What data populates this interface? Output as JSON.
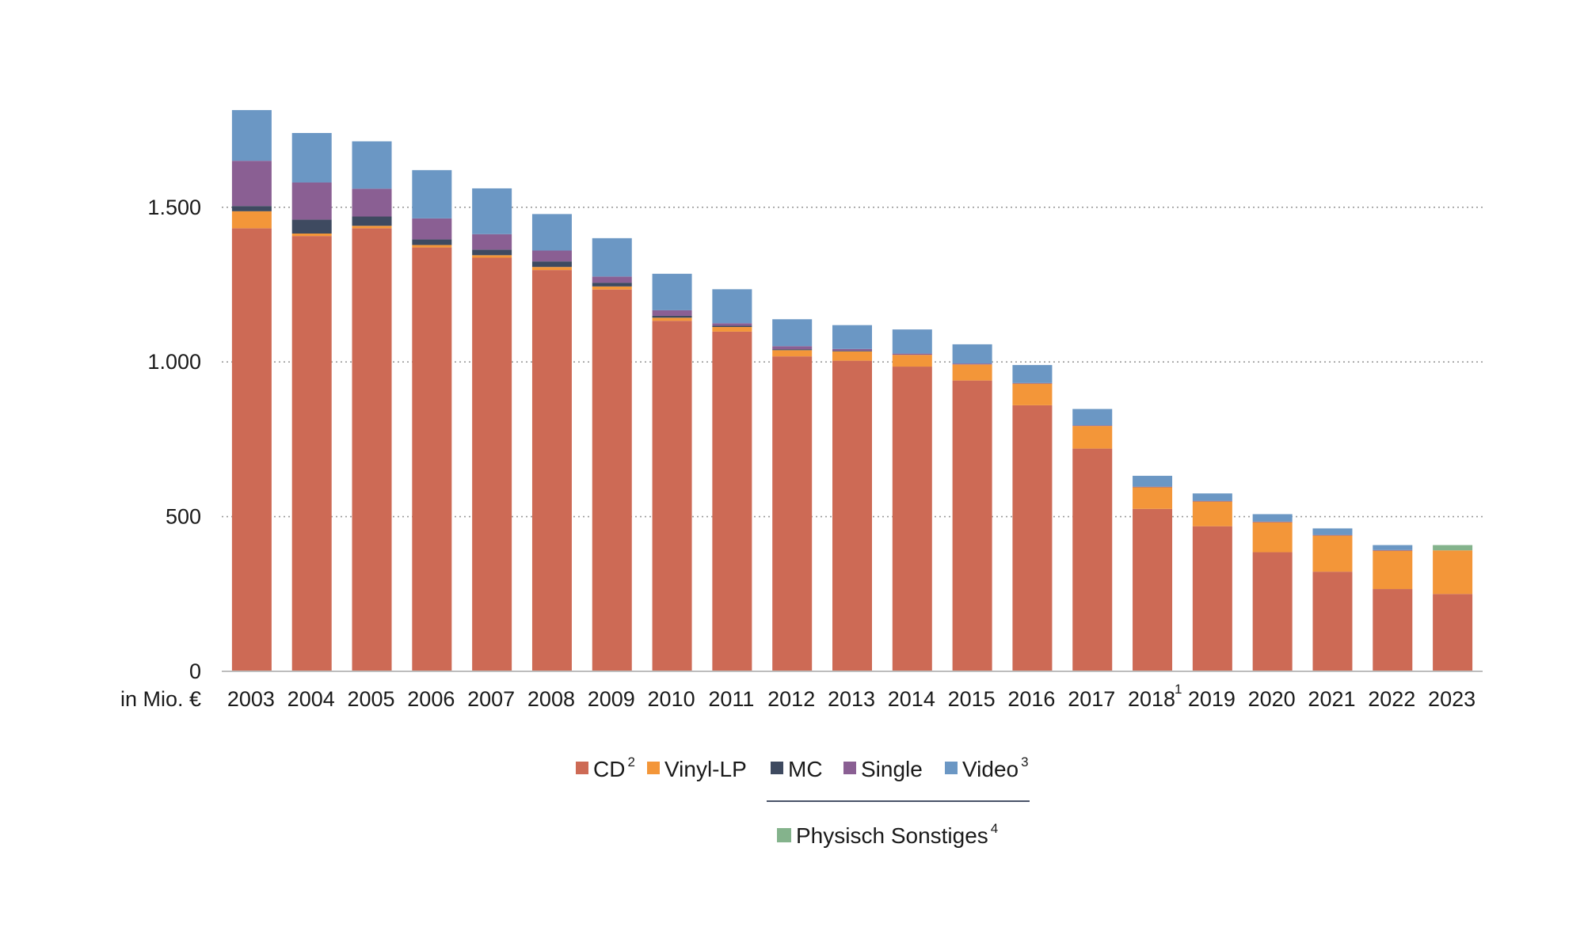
{
  "chart_data": {
    "type": "bar",
    "stacked": true,
    "unit_label": "in Mio. €",
    "ylim": [
      0,
      1850
    ],
    "y_ticks": [
      {
        "value": 0,
        "label": "0"
      },
      {
        "value": 500,
        "label": "500"
      },
      {
        "value": 1000,
        "label": "1.000"
      },
      {
        "value": 1500,
        "label": "1.500"
      }
    ],
    "grid": true,
    "categories": [
      {
        "label": "2003",
        "sup": ""
      },
      {
        "label": "2004",
        "sup": ""
      },
      {
        "label": "2005",
        "sup": ""
      },
      {
        "label": "2006",
        "sup": ""
      },
      {
        "label": "2007",
        "sup": ""
      },
      {
        "label": "2008",
        "sup": ""
      },
      {
        "label": "2009",
        "sup": ""
      },
      {
        "label": "2010",
        "sup": ""
      },
      {
        "label": "2011",
        "sup": ""
      },
      {
        "label": "2012",
        "sup": ""
      },
      {
        "label": "2013",
        "sup": ""
      },
      {
        "label": "2014",
        "sup": ""
      },
      {
        "label": "2015",
        "sup": ""
      },
      {
        "label": "2016",
        "sup": ""
      },
      {
        "label": "2017",
        "sup": ""
      },
      {
        "label": "2018",
        "sup": "1"
      },
      {
        "label": "2019",
        "sup": ""
      },
      {
        "label": "2020",
        "sup": ""
      },
      {
        "label": "2021",
        "sup": ""
      },
      {
        "label": "2022",
        "sup": ""
      },
      {
        "label": "2023",
        "sup": ""
      }
    ],
    "series": [
      {
        "name": "CD",
        "sup": "2",
        "color": "#cd6a55",
        "values": [
          1432,
          1407,
          1432,
          1370,
          1337,
          1297,
          1234,
          1133,
          1098,
          1018,
          1004,
          985,
          940,
          860,
          720,
          525,
          469,
          385,
          322,
          266,
          250
        ]
      },
      {
        "name": "Vinyl-LP",
        "sup": "",
        "color": "#f39639",
        "values": [
          55,
          8,
          8,
          8,
          8,
          10,
          10,
          10,
          15,
          20,
          30,
          38,
          52,
          70,
          73,
          70,
          80,
          97,
          117,
          124,
          141
        ]
      },
      {
        "name": "MC",
        "sup": "",
        "color": "#3e4a60",
        "values": [
          17,
          45,
          30,
          18,
          18,
          18,
          12,
          6,
          4,
          3,
          2,
          0,
          0,
          0,
          0,
          0,
          0,
          0,
          0,
          0,
          0
        ]
      },
      {
        "name": "Single",
        "sup": "",
        "color": "#8a5f93",
        "values": [
          146,
          120,
          90,
          68,
          50,
          35,
          20,
          18,
          8,
          10,
          6,
          4,
          3,
          2,
          2,
          2,
          2,
          2,
          2,
          2,
          0
        ]
      },
      {
        "name": "Video",
        "sup": "3",
        "color": "#6b97c4",
        "values": [
          164,
          160,
          153,
          156,
          148,
          118,
          124,
          118,
          110,
          87,
          77,
          78,
          62,
          58,
          53,
          35,
          24,
          24,
          21,
          16,
          0
        ]
      },
      {
        "name": "Physisch Sonstiges",
        "sup": "4",
        "color": "#84b38c",
        "values": [
          0,
          0,
          0,
          0,
          0,
          0,
          0,
          0,
          0,
          0,
          0,
          0,
          0,
          0,
          0,
          0,
          0,
          0,
          0,
          0,
          17
        ]
      }
    ]
  }
}
